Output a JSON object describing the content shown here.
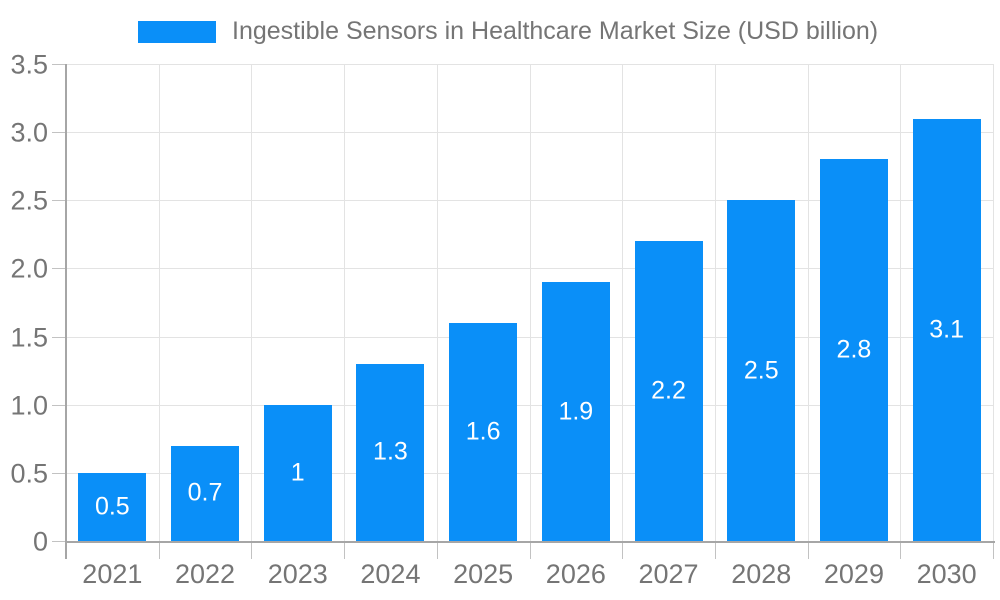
{
  "legend": {
    "label": "Ingestible Sensors in Healthcare Market Size (USD billion)"
  },
  "colors": {
    "bar": "#0a8ff8",
    "text": "#757575",
    "value_label": "#ffffff",
    "grid": "#e3e3e3",
    "axis": "#a6a6a6",
    "tick": "#c2c2c2",
    "background": "#ffffff"
  },
  "chart_data": {
    "type": "bar",
    "title": "Ingestible Sensors in Healthcare Market Size (USD billion)",
    "categories": [
      "2021",
      "2022",
      "2023",
      "2024",
      "2025",
      "2026",
      "2027",
      "2028",
      "2029",
      "2030"
    ],
    "values": [
      0.5,
      0.7,
      1,
      1.3,
      1.6,
      1.9,
      2.2,
      2.5,
      2.8,
      3.1
    ],
    "value_labels": [
      "0.5",
      "0.7",
      "1",
      "1.3",
      "1.6",
      "1.9",
      "2.2",
      "2.5",
      "2.8",
      "3.1"
    ],
    "xlabel": "",
    "ylabel": "",
    "ylim": [
      0,
      3.5
    ],
    "y_ticks": [
      0,
      0.5,
      1,
      1.5,
      2,
      2.5,
      3,
      3.5
    ],
    "y_tick_labels": [
      "0",
      "0.5",
      "1.0",
      "1.5",
      "2.0",
      "2.5",
      "3.0",
      "3.5"
    ],
    "grid": "on",
    "legend_position": "top-center",
    "value_label_position": "inside-center"
  }
}
